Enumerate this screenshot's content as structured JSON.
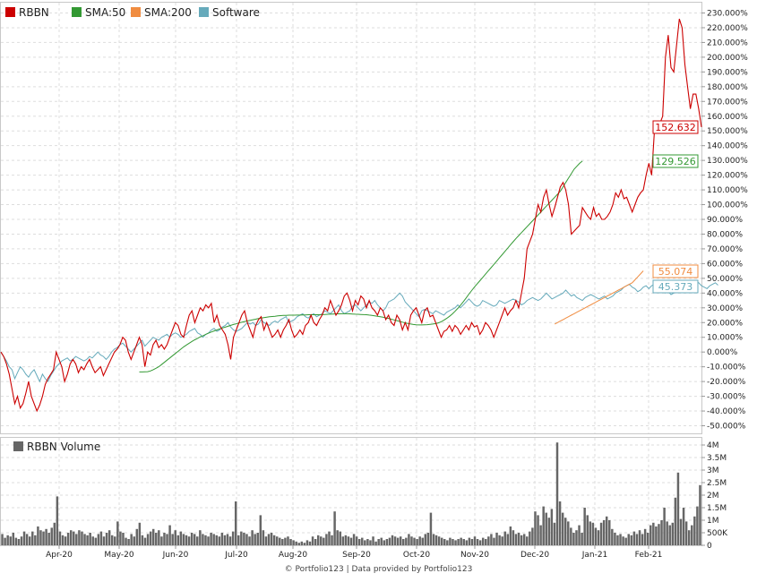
{
  "chart_data": [
    {
      "type": "line",
      "legend_position": "top-left",
      "grid": true,
      "ylim": [
        -50,
        230
      ],
      "yticks": [
        230,
        220,
        210,
        200,
        190,
        180,
        170,
        160,
        150,
        140,
        130,
        120,
        110,
        100,
        90,
        80,
        70,
        60,
        50,
        40,
        30,
        20,
        10,
        0,
        -10,
        -20,
        -30,
        -40,
        -50
      ],
      "ytick_suffix": ".000%",
      "series": [
        {
          "name": "RBBN",
          "color": "#cc0000",
          "last_label": "152.632",
          "values": [
            0,
            -3,
            -8,
            -15,
            -25,
            -35,
            -30,
            -38,
            -35,
            -28,
            -20,
            -30,
            -35,
            -40,
            -36,
            -30,
            -22,
            -18,
            -15,
            -12,
            0,
            -5,
            -10,
            -20,
            -15,
            -8,
            -5,
            -8,
            -14,
            -10,
            -12,
            -8,
            -5,
            -10,
            -14,
            -12,
            -10,
            -16,
            -12,
            -8,
            -4,
            0,
            2,
            5,
            10,
            8,
            0,
            -5,
            0,
            5,
            10,
            5,
            -10,
            0,
            -2,
            5,
            8,
            3,
            5,
            2,
            5,
            10,
            15,
            20,
            18,
            12,
            10,
            18,
            25,
            28,
            20,
            25,
            30,
            28,
            32,
            30,
            33,
            20,
            25,
            18,
            15,
            12,
            5,
            -5,
            10,
            15,
            20,
            25,
            28,
            20,
            15,
            10,
            18,
            22,
            24,
            15,
            20,
            15,
            10,
            12,
            15,
            10,
            15,
            18,
            22,
            15,
            10,
            12,
            15,
            12,
            18,
            20,
            25,
            20,
            18,
            22,
            25,
            30,
            28,
            35,
            30,
            25,
            28,
            32,
            38,
            40,
            35,
            28,
            35,
            32,
            38,
            36,
            30,
            35,
            30,
            28,
            25,
            30,
            28,
            22,
            25,
            20,
            18,
            25,
            22,
            15,
            20,
            15,
            25,
            28,
            30,
            25,
            20,
            28,
            30,
            24,
            25,
            20,
            15,
            10,
            14,
            15,
            18,
            14,
            18,
            16,
            12,
            15,
            18,
            15,
            20,
            17,
            18,
            12,
            15,
            20,
            18,
            15,
            10,
            15,
            20,
            25,
            30,
            25,
            28,
            30,
            35,
            30,
            40,
            50,
            70,
            75,
            80,
            90,
            100,
            95,
            105,
            110,
            100,
            92,
            98,
            105,
            112,
            115,
            110,
            100,
            80,
            82,
            84,
            86,
            98,
            95,
            92,
            90,
            98,
            92,
            94,
            90,
            90,
            92,
            95,
            100,
            108,
            105,
            110,
            104,
            105,
            100,
            95,
            100,
            105,
            108,
            110,
            120,
            128,
            120,
            150,
            152,
            155,
            160,
            200,
            215,
            193,
            190,
            208,
            226,
            220,
            195,
            180,
            165,
            175,
            175,
            165,
            152.632
          ]
        },
        {
          "name": "SMA:50",
          "color": "#339933",
          "start_index": 50,
          "last_label": "129.526",
          "values": [
            -13.5,
            -13.5,
            -13.4,
            -13.3,
            -12.8,
            -12,
            -11,
            -10,
            -8.5,
            -7,
            -5.5,
            -4,
            -2.5,
            -1,
            0.5,
            2,
            3.5,
            4.8,
            6,
            7.2,
            8.3,
            9.3,
            10.3,
            11.1,
            12,
            12.8,
            13.6,
            14.3,
            15,
            15.7,
            16.3,
            16.9,
            17.5,
            18.1,
            18.7,
            19.2,
            19.7,
            20.2,
            20.7,
            21.1,
            21.5,
            21.9,
            22.3,
            22.7,
            23,
            23.3,
            23.6,
            23.9,
            24.1,
            24.3,
            24.5,
            24.7,
            24.8,
            24.9,
            25,
            25,
            25,
            25.1,
            25.1,
            25.2,
            25.2,
            25.3,
            25.3,
            25.3,
            25.3,
            25.3,
            25.4,
            25.5,
            25.6,
            25.7,
            25.8,
            25.9,
            25.9,
            26,
            26,
            26,
            25.9,
            25.8,
            25.7,
            25.6,
            25.5,
            25.4,
            25.3,
            25.1,
            24.9,
            24.6,
            24.3,
            24,
            23.6,
            23.2,
            22.8,
            22.3,
            21.8,
            21.3,
            20.8,
            20.3,
            19.8,
            19.4,
            19,
            18.7,
            18.5,
            18.4,
            18.4,
            18.5,
            18.6,
            18.8,
            19,
            19.3,
            19.8,
            20.6,
            21.6,
            22.8,
            24.2,
            25.8,
            27.6,
            29.6,
            31.8,
            34.2,
            36.7,
            39.3,
            41.7,
            44,
            46.2,
            48.4,
            50.6,
            52.8,
            55,
            57.2,
            59.4,
            61.6,
            63.8,
            66,
            68.2,
            70.4,
            72.6,
            74.8,
            77,
            79,
            81,
            83,
            85,
            87,
            89,
            91,
            93,
            95,
            97,
            99,
            101,
            103,
            105,
            107,
            109,
            112,
            115,
            118,
            121,
            124,
            126,
            128,
            129.526
          ]
        },
        {
          "name": "SMA:200",
          "color": "#f08c40",
          "start_index": 200,
          "last_label": "55.074",
          "values": [
            19,
            20,
            21,
            22,
            23,
            24,
            25,
            26,
            27,
            28,
            29,
            30,
            31,
            32,
            33,
            34,
            35,
            36,
            37,
            38,
            39,
            40,
            41,
            42,
            43,
            44,
            45,
            46,
            47,
            49,
            51,
            53,
            55.074
          ]
        },
        {
          "name": "Software",
          "color": "#66aabb",
          "last_label": "45.373",
          "values": [
            0,
            -3,
            -6,
            -10,
            -12,
            -18,
            -14,
            -10,
            -12,
            -15,
            -17,
            -14,
            -12,
            -16,
            -20,
            -15,
            -18,
            -20,
            -16,
            -13,
            -10,
            -8,
            -6,
            -5,
            -4,
            -6,
            -5,
            -3,
            -4,
            -5,
            -6,
            -5,
            -3,
            -4,
            -2,
            0,
            -2,
            -3,
            -5,
            -3,
            0,
            2,
            3,
            5,
            6,
            4,
            2,
            0,
            2,
            4,
            6,
            8,
            4,
            6,
            8,
            10,
            9,
            8,
            10,
            11,
            12,
            10,
            12,
            13,
            12,
            10,
            11,
            12,
            14,
            15,
            16,
            13,
            12,
            10,
            12,
            13,
            15,
            16,
            14,
            15,
            17,
            18,
            20,
            17,
            15,
            14,
            15,
            16,
            18,
            20,
            19,
            20,
            18,
            19,
            22,
            20,
            19,
            18,
            20,
            21,
            20,
            22,
            23,
            24,
            20,
            21,
            22,
            24,
            25,
            26,
            24,
            23,
            25,
            26,
            24,
            25,
            26,
            28,
            27,
            26,
            28,
            30,
            32,
            28,
            26,
            27,
            28,
            31,
            32,
            30,
            28,
            30,
            32,
            34,
            33,
            35,
            32,
            30,
            28,
            30,
            34,
            35,
            36,
            38,
            40,
            38,
            34,
            32,
            30,
            28,
            26,
            24,
            28,
            29,
            28,
            27,
            26,
            28,
            27,
            26,
            25,
            27,
            28,
            29,
            30,
            32,
            30,
            32,
            34,
            36,
            34,
            32,
            31,
            32,
            35,
            34,
            33,
            32,
            31,
            32,
            35,
            34,
            33,
            34,
            35,
            36,
            35,
            34,
            32,
            33,
            35,
            36,
            37,
            36,
            35,
            36,
            38,
            40,
            38,
            36,
            37,
            38,
            39,
            40,
            42,
            40,
            38,
            39,
            37,
            36,
            35,
            37,
            38,
            39,
            38,
            37,
            36,
            37,
            38,
            36,
            37,
            38,
            40,
            41,
            42,
            44,
            45,
            46,
            44,
            43,
            41,
            42,
            44,
            45,
            43,
            45,
            46,
            44,
            43,
            41,
            40,
            41,
            39,
            40,
            42,
            43,
            44,
            42,
            43,
            45,
            46,
            48,
            47,
            45,
            44,
            43,
            45,
            46,
            47,
            45.373
          ]
        }
      ]
    },
    {
      "type": "bar",
      "legend_position": "top-left",
      "grid": true,
      "series_name": "RBBN Volume",
      "color": "#666666",
      "ylim": [
        0,
        4.1
      ],
      "yticks": [
        "4M",
        "3.5M",
        "3M",
        "2.5M",
        "2M",
        "1.5M",
        "1M",
        "500K",
        "0"
      ],
      "ytick_values": [
        4,
        3.5,
        3,
        2.5,
        2,
        1.5,
        1,
        0.5,
        0
      ],
      "x_tick_labels": [
        "Apr-20",
        "May-20",
        "Jun-20",
        "Jul-20",
        "Aug-20",
        "Sep-20",
        "Oct-20",
        "Nov-20",
        "Dec-20",
        "Jan-21",
        "Feb-21"
      ],
      "values": [
        0.45,
        0.3,
        0.4,
        0.35,
        0.5,
        0.3,
        0.25,
        0.35,
        0.55,
        0.45,
        0.35,
        0.55,
        0.4,
        0.75,
        0.6,
        0.55,
        0.65,
        0.5,
        0.7,
        0.9,
        1.95,
        0.55,
        0.4,
        0.35,
        0.5,
        0.6,
        0.55,
        0.45,
        0.6,
        0.55,
        0.45,
        0.4,
        0.5,
        0.35,
        0.3,
        0.45,
        0.55,
        0.35,
        0.5,
        0.6,
        0.4,
        0.35,
        0.95,
        0.55,
        0.5,
        0.3,
        0.25,
        0.45,
        0.35,
        0.65,
        0.9,
        0.4,
        0.3,
        0.45,
        0.55,
        0.65,
        0.5,
        0.6,
        0.35,
        0.5,
        0.45,
        0.8,
        0.45,
        0.6,
        0.4,
        0.55,
        0.45,
        0.4,
        0.35,
        0.5,
        0.45,
        0.35,
        0.6,
        0.45,
        0.4,
        0.35,
        0.5,
        0.45,
        0.4,
        0.35,
        0.5,
        0.4,
        0.45,
        0.35,
        0.55,
        1.75,
        0.4,
        0.55,
        0.5,
        0.45,
        0.35,
        0.6,
        0.45,
        0.5,
        1.2,
        0.6,
        0.35,
        0.45,
        0.5,
        0.4,
        0.35,
        0.3,
        0.25,
        0.3,
        0.35,
        0.25,
        0.2,
        0.15,
        0.1,
        0.15,
        0.1,
        0.2,
        0.15,
        0.35,
        0.25,
        0.4,
        0.35,
        0.3,
        0.45,
        0.55,
        0.4,
        1.35,
        0.6,
        0.55,
        0.35,
        0.4,
        0.35,
        0.3,
        0.45,
        0.35,
        0.25,
        0.3,
        0.2,
        0.25,
        0.2,
        0.35,
        0.15,
        0.25,
        0.3,
        0.2,
        0.25,
        0.3,
        0.4,
        0.35,
        0.3,
        0.35,
        0.25,
        0.3,
        0.45,
        0.35,
        0.3,
        0.25,
        0.35,
        0.3,
        0.45,
        0.5,
        1.3,
        0.45,
        0.4,
        0.35,
        0.3,
        0.25,
        0.2,
        0.3,
        0.25,
        0.2,
        0.25,
        0.3,
        0.25,
        0.2,
        0.3,
        0.25,
        0.35,
        0.25,
        0.2,
        0.3,
        0.25,
        0.35,
        0.45,
        0.3,
        0.5,
        0.4,
        0.35,
        0.55,
        0.45,
        0.75,
        0.6,
        0.45,
        0.5,
        0.4,
        0.45,
        0.35,
        0.55,
        0.7,
        1.35,
        1.2,
        0.8,
        1.55,
        1.3,
        1.1,
        1.45,
        0.9,
        4.2,
        1.75,
        1.3,
        1.1,
        0.95,
        0.7,
        0.5,
        0.6,
        0.8,
        0.5,
        1.5,
        1.2,
        0.95,
        0.9,
        0.7,
        0.6,
        0.9,
        1.0,
        1.15,
        1.0,
        0.65,
        0.5,
        0.4,
        0.45,
        0.35,
        0.3,
        0.45,
        0.4,
        0.55,
        0.45,
        0.6,
        0.45,
        0.65,
        0.5,
        0.8,
        0.9,
        0.75,
        0.85,
        1.0,
        1.5,
        0.95,
        0.8,
        0.9,
        1.9,
        2.9,
        1.05,
        1.5,
        0.95,
        0.6,
        0.8,
        1.15,
        1.55,
        2.4
      ]
    }
  ],
  "footer": {
    "credit": "© Portfolio123 | Data provided by Portfolio123"
  }
}
